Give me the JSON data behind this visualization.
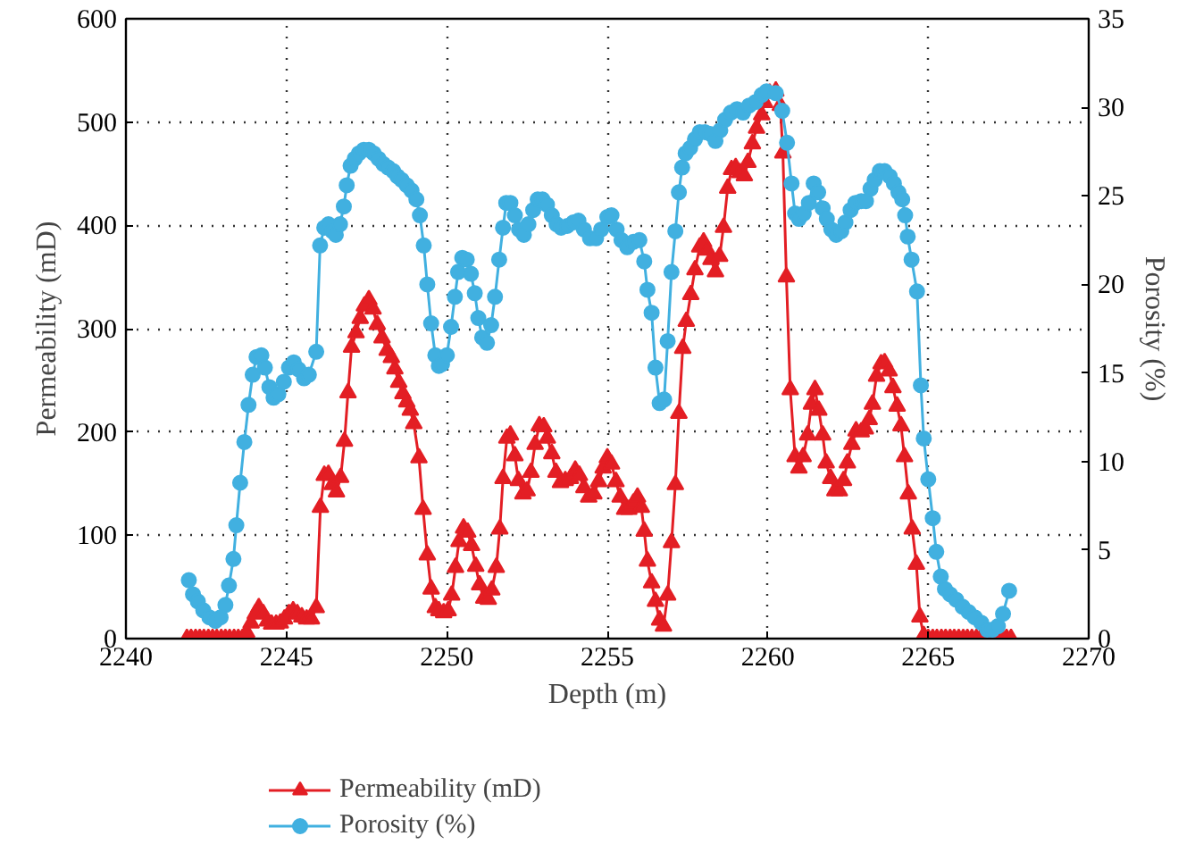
{
  "chart_data": {
    "type": "line",
    "xlabel": "Depth (m)",
    "ylabel": "Permeability (mD)",
    "y2label": "Porosity (%)",
    "xlim": [
      2240,
      2270
    ],
    "xticks": [
      2240,
      2245,
      2250,
      2255,
      2260,
      2265,
      2270
    ],
    "ylim": [
      0,
      600
    ],
    "yticks": [
      0,
      100,
      200,
      300,
      400,
      500,
      600
    ],
    "y2lim": [
      0,
      35
    ],
    "y2ticks": [
      0,
      5,
      10,
      15,
      20,
      25,
      30,
      35
    ],
    "grid": true,
    "legend": "bottom",
    "line_style": "solid",
    "series": [
      {
        "name": "Permeability (mD)",
        "color": "#e31e24",
        "marker": "triangle",
        "axis": "y",
        "x": [
          2241.9,
          2242.03,
          2242.17,
          2242.3,
          2242.43,
          2242.57,
          2242.7,
          2242.83,
          2242.97,
          2243.1,
          2243.23,
          2243.37,
          2243.5,
          2243.63,
          2243.76,
          2243.9,
          2244.03,
          2244.14,
          2244.28,
          2244.41,
          2244.54,
          2244.68,
          2244.81,
          2244.94,
          2245.08,
          2245.21,
          2245.34,
          2245.48,
          2245.63,
          2245.78,
          2245.93,
          2246.06,
          2246.18,
          2246.31,
          2246.43,
          2246.56,
          2246.69,
          2246.81,
          2246.92,
          2247.03,
          2247.17,
          2247.3,
          2247.43,
          2247.57,
          2247.7,
          2247.83,
          2247.98,
          2248.14,
          2248.27,
          2248.38,
          2248.5,
          2248.63,
          2248.75,
          2248.86,
          2248.97,
          2249.13,
          2249.26,
          2249.39,
          2249.51,
          2249.64,
          2249.75,
          2249.9,
          2250.04,
          2250.15,
          2250.27,
          2250.38,
          2250.52,
          2250.65,
          2250.77,
          2250.9,
          2251.02,
          2251.15,
          2251.29,
          2251.4,
          2251.54,
          2251.65,
          2251.75,
          2251.87,
          2251.98,
          2252.12,
          2252.23,
          2252.37,
          2252.5,
          2252.62,
          2252.75,
          2252.88,
          2253.02,
          2253.13,
          2253.27,
          2253.4,
          2253.54,
          2253.69,
          2253.85,
          2254.0,
          2254.13,
          2254.27,
          2254.42,
          2254.58,
          2254.73,
          2254.87,
          2255.0,
          2255.13,
          2255.27,
          2255.4,
          2255.54,
          2255.67,
          2255.81,
          2255.94,
          2256.06,
          2256.15,
          2256.25,
          2256.38,
          2256.5,
          2256.63,
          2256.75,
          2256.88,
          2257.0,
          2257.12,
          2257.23,
          2257.35,
          2257.46,
          2257.6,
          2257.73,
          2257.88,
          2258.0,
          2258.12,
          2258.23,
          2258.37,
          2258.5,
          2258.62,
          2258.75,
          2258.87,
          2259.0,
          2259.13,
          2259.27,
          2259.38,
          2259.52,
          2259.65,
          2259.81,
          2259.9,
          2260.06,
          2260.25,
          2260.39,
          2260.47,
          2260.58,
          2260.7,
          2260.85,
          2260.97,
          2261.1,
          2261.24,
          2261.36,
          2261.47,
          2261.59,
          2261.71,
          2261.82,
          2261.96,
          2262.09,
          2262.23,
          2262.36,
          2262.48,
          2262.62,
          2262.75,
          2262.91,
          2263.04,
          2263.16,
          2263.26,
          2263.39,
          2263.53,
          2263.64,
          2263.78,
          2263.9,
          2264.03,
          2264.15,
          2264.26,
          2264.38,
          2264.5,
          2264.63,
          2264.74,
          2264.86,
          2265.0,
          2265.14,
          2265.27,
          2265.41,
          2265.54,
          2265.68,
          2265.81,
          2265.95,
          2266.09,
          2266.22,
          2266.36,
          2266.5,
          2266.63,
          2266.76,
          2266.9,
          2267.03,
          2267.17,
          2267.31,
          2267.44,
          2267.58
        ],
        "values": [
          0,
          0,
          0,
          0,
          0,
          0,
          0,
          0,
          0,
          0,
          0,
          0,
          0,
          0,
          6,
          15,
          24,
          30,
          24,
          17,
          14,
          14,
          15,
          19,
          24,
          27,
          24,
          21,
          19,
          19,
          30,
          127,
          158,
          159,
          149,
          142,
          156,
          191,
          238,
          282,
          296,
          310,
          322,
          328,
          319,
          304,
          291,
          279,
          272,
          261,
          248,
          237,
          229,
          221,
          208,
          175,
          125,
          81,
          48,
          30,
          27,
          25,
          27,
          42,
          69,
          94,
          107,
          103,
          90,
          70,
          52,
          39,
          38,
          47,
          69,
          106,
          155,
          194,
          197,
          177,
          153,
          140,
          143,
          161,
          188,
          206,
          205,
          194,
          179,
          161,
          151,
          153,
          155,
          163,
          158,
          146,
          137,
          140,
          152,
          165,
          175,
          169,
          152,
          137,
          125,
          125,
          131,
          137,
          127,
          104,
          75,
          54,
          36,
          18,
          12,
          42,
          93,
          149,
          218,
          281,
          307,
          333,
          357,
          379,
          384,
          376,
          367,
          355,
          370,
          398,
          436,
          454,
          456,
          451,
          448,
          461,
          479,
          494,
          507,
          519,
          528,
          530,
          516,
          470,
          350,
          241,
          176,
          165,
          176,
          197,
          227,
          241,
          221,
          197,
          170,
          155,
          143,
          143,
          153,
          170,
          188,
          201,
          200,
          203,
          212,
          227,
          254,
          266,
          267,
          259,
          243,
          225,
          206,
          176,
          140,
          106,
          72,
          21,
          3,
          0,
          0,
          0,
          0,
          0,
          0,
          0,
          0,
          0,
          0,
          0,
          0,
          0,
          0,
          0,
          0,
          0,
          0,
          0,
          0
        ]
      },
      {
        "name": "Porosity (%)",
        "color": "#41b0e0",
        "marker": "circle",
        "axis": "y2",
        "x": [
          2241.96,
          2242.09,
          2242.24,
          2242.41,
          2242.6,
          2242.79,
          2242.95,
          2243.1,
          2243.21,
          2243.35,
          2243.44,
          2243.56,
          2243.69,
          2243.82,
          2243.95,
          2244.07,
          2244.22,
          2244.33,
          2244.47,
          2244.6,
          2244.75,
          2244.92,
          2245.08,
          2245.23,
          2245.38,
          2245.55,
          2245.7,
          2245.93,
          2246.05,
          2246.18,
          2246.31,
          2246.43,
          2246.54,
          2246.67,
          2246.79,
          2246.88,
          2247.0,
          2247.13,
          2247.26,
          2247.41,
          2247.57,
          2247.72,
          2247.87,
          2248.02,
          2248.17,
          2248.33,
          2248.46,
          2248.59,
          2248.75,
          2248.9,
          2249.05,
          2249.16,
          2249.28,
          2249.39,
          2249.51,
          2249.64,
          2249.75,
          2249.85,
          2250.0,
          2250.13,
          2250.25,
          2250.35,
          2250.48,
          2250.62,
          2250.75,
          2250.87,
          2250.98,
          2251.1,
          2251.25,
          2251.38,
          2251.5,
          2251.63,
          2251.75,
          2251.85,
          2251.98,
          2252.12,
          2252.25,
          2252.4,
          2252.54,
          2252.69,
          2252.83,
          2252.98,
          2253.12,
          2253.27,
          2253.42,
          2253.56,
          2253.75,
          2253.94,
          2254.1,
          2254.27,
          2254.46,
          2254.65,
          2254.81,
          2255.0,
          2255.13,
          2255.29,
          2255.44,
          2255.62,
          2255.81,
          2256.0,
          2256.15,
          2256.25,
          2256.38,
          2256.5,
          2256.63,
          2256.77,
          2256.88,
          2257.0,
          2257.12,
          2257.23,
          2257.33,
          2257.44,
          2257.58,
          2257.73,
          2257.88,
          2258.04,
          2258.21,
          2258.37,
          2258.52,
          2258.67,
          2258.85,
          2259.04,
          2259.23,
          2259.42,
          2259.62,
          2259.81,
          2259.96,
          2260.25,
          2260.45,
          2260.6,
          2260.74,
          2260.85,
          2260.97,
          2261.12,
          2261.28,
          2261.43,
          2261.57,
          2261.71,
          2261.84,
          2261.98,
          2262.13,
          2262.29,
          2262.42,
          2262.58,
          2262.73,
          2262.91,
          2263.06,
          2263.2,
          2263.33,
          2263.49,
          2263.64,
          2263.8,
          2263.93,
          2264.07,
          2264.19,
          2264.28,
          2264.36,
          2264.48,
          2264.65,
          2264.77,
          2264.86,
          2265.0,
          2265.14,
          2265.25,
          2265.39,
          2265.52,
          2265.68,
          2265.87,
          2266.07,
          2266.26,
          2266.45,
          2266.65,
          2266.84,
          2267.0,
          2267.17,
          2267.33,
          2267.52
        ],
        "values": [
          3.3,
          2.5,
          2.1,
          1.6,
          1.2,
          1.0,
          1.2,
          1.9,
          3.0,
          4.5,
          6.4,
          8.8,
          11.1,
          13.2,
          14.9,
          15.9,
          16.0,
          15.3,
          14.2,
          13.6,
          13.8,
          14.5,
          15.3,
          15.6,
          15.2,
          14.7,
          14.9,
          16.2,
          22.2,
          23.2,
          23.4,
          23.0,
          22.8,
          23.4,
          24.4,
          25.6,
          26.7,
          27.1,
          27.4,
          27.6,
          27.6,
          27.4,
          27.1,
          26.8,
          26.6,
          26.4,
          26.1,
          25.9,
          25.6,
          25.3,
          24.8,
          23.9,
          22.2,
          20.0,
          17.8,
          16.0,
          15.4,
          15.5,
          16.0,
          17.6,
          19.3,
          20.7,
          21.5,
          21.4,
          20.6,
          19.5,
          18.1,
          17.0,
          16.7,
          17.7,
          19.3,
          21.4,
          23.2,
          24.6,
          24.6,
          23.9,
          23.1,
          22.8,
          23.4,
          24.2,
          24.8,
          24.8,
          24.5,
          23.9,
          23.4,
          23.2,
          23.3,
          23.5,
          23.6,
          23.1,
          22.6,
          22.6,
          23.1,
          23.8,
          23.9,
          23.1,
          22.5,
          22.1,
          22.4,
          22.5,
          21.3,
          19.7,
          18.4,
          15.3,
          13.3,
          13.5,
          16.8,
          20.7,
          23.0,
          25.2,
          26.6,
          27.4,
          27.7,
          28.2,
          28.6,
          28.6,
          28.5,
          28.1,
          28.7,
          29.3,
          29.7,
          29.9,
          29.7,
          30.1,
          30.3,
          30.7,
          30.9,
          30.8,
          29.8,
          28.0,
          25.7,
          24.0,
          23.7,
          24.0,
          24.6,
          25.7,
          25.2,
          24.3,
          23.7,
          23.1,
          22.8,
          23.0,
          23.5,
          24.2,
          24.6,
          24.7,
          24.7,
          25.4,
          25.9,
          26.4,
          26.4,
          26.1,
          25.7,
          25.2,
          24.8,
          23.9,
          22.7,
          21.4,
          19.6,
          14.3,
          11.3,
          9.0,
          6.8,
          4.9,
          3.5,
          2.8,
          2.5,
          2.2,
          1.8,
          1.5,
          1.2,
          0.9,
          0.5,
          0.5,
          0.7,
          1.4,
          2.7
        ]
      }
    ]
  }
}
